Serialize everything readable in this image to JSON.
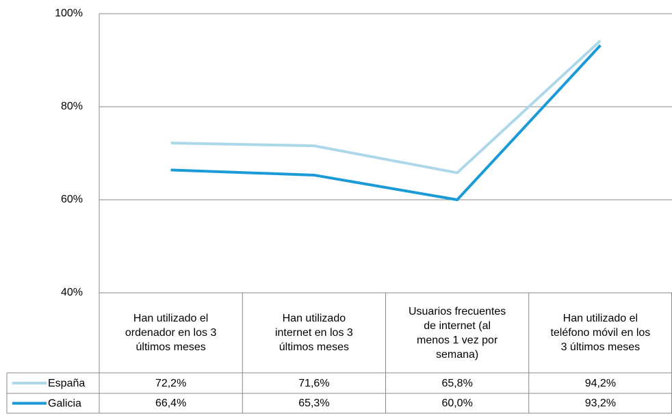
{
  "chart_data": {
    "type": "line",
    "categories": [
      "Han utilizado el ordenador en los 3 últimos meses",
      "Han utilizado internet en los 3 últimos meses",
      "Usuarios frecuentes de internet (al menos 1 vez por semana)",
      "Han utilizado el teléfono móvil en los 3 últimos meses"
    ],
    "series": [
      {
        "name": "España",
        "color": "#add8ea",
        "values": [
          72.2,
          71.6,
          65.8,
          94.2
        ],
        "value_labels": [
          "72,2%",
          "71,6%",
          "65,8%",
          "94,2%"
        ]
      },
      {
        "name": "Galicia",
        "color": "#1a9ad6",
        "values": [
          66.4,
          65.3,
          60.0,
          93.2
        ],
        "value_labels": [
          "66,4%",
          "65,3%",
          "60,0%",
          "93,2%"
        ]
      }
    ],
    "ylim": [
      40,
      100
    ],
    "yticks": [
      {
        "value": 40,
        "label": "40%"
      },
      {
        "value": 60,
        "label": "60%"
      },
      {
        "value": 80,
        "label": "80%"
      },
      {
        "value": 100,
        "label": "100%"
      }
    ],
    "grid": true
  }
}
